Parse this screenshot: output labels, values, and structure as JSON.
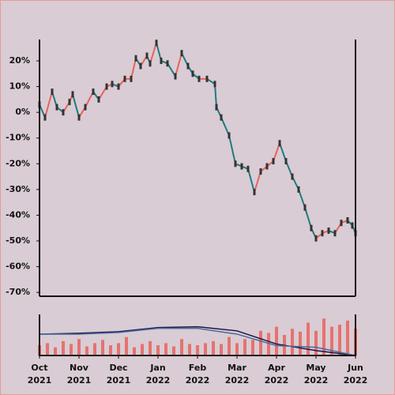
{
  "chart_data": [
    {
      "type": "line",
      "x": [
        0,
        0.14,
        0.32,
        0.44,
        0.6,
        0.76,
        0.84,
        1,
        1.16,
        1.36,
        1.5,
        1.7,
        1.84,
        2,
        2.16,
        2.32,
        2.44,
        2.56,
        2.72,
        2.8,
        2.96,
        3.08,
        3.24,
        3.44,
        3.6,
        3.76,
        3.88,
        4.04,
        4.24,
        4.44,
        4.48,
        4.6,
        4.8,
        4.96,
        5.12,
        5.28,
        5.44,
        5.6,
        5.76,
        5.92,
        6.08,
        6.24,
        6.4,
        6.56,
        6.72,
        6.88,
        7,
        7.16,
        7.32,
        7.48,
        7.64,
        7.8,
        7.92,
        8
      ],
      "values": [
        3,
        -2,
        8,
        2,
        0,
        4,
        7,
        -2,
        2,
        8,
        5,
        10,
        11,
        10,
        13,
        13,
        21,
        18,
        22,
        19,
        27,
        20,
        19,
        14,
        23,
        18,
        15,
        13,
        13,
        11,
        2,
        -2,
        -9,
        -20,
        -21,
        -22,
        -31,
        -23,
        -21,
        -19,
        -12,
        -19,
        -25,
        -30,
        -37,
        -45,
        -49,
        -47,
        -46,
        -47,
        -43,
        -42,
        -44,
        -47
      ],
      "up_color": "#e8625a",
      "down_color": "#1f7a80",
      "candle_color": "#333333",
      "xlim": [
        0,
        8
      ],
      "ylim": [
        -71.5,
        28.3
      ],
      "yticks": [
        {
          "value": -70,
          "label": "-70%"
        },
        {
          "value": -60,
          "label": "-60%"
        },
        {
          "value": -50,
          "label": "-50%"
        },
        {
          "value": -40,
          "label": "-40%"
        },
        {
          "value": -30,
          "label": "-30%"
        },
        {
          "value": -20,
          "label": "-20%"
        },
        {
          "value": -10,
          "label": "-10%"
        },
        {
          "value": 0,
          "label": "0%"
        },
        {
          "value": 10,
          "label": "10%"
        },
        {
          "value": 20,
          "label": "20%"
        }
      ]
    },
    {
      "type": "bar",
      "x": [
        0,
        0.2,
        0.4,
        0.6,
        0.8,
        1,
        1.2,
        1.4,
        1.6,
        1.8,
        2,
        2.2,
        2.4,
        2.6,
        2.8,
        3,
        3.2,
        3.4,
        3.6,
        3.8,
        4,
        4.2,
        4.4,
        4.6,
        4.8,
        5,
        5.2,
        5.4,
        5.6,
        5.8,
        6,
        6.2,
        6.4,
        6.6,
        6.8,
        7,
        7.2,
        7.4,
        7.6,
        7.8,
        8
      ],
      "values": [
        25,
        30,
        20,
        35,
        28,
        40,
        22,
        30,
        38,
        25,
        30,
        45,
        20,
        28,
        35,
        25,
        30,
        22,
        40,
        28,
        25,
        30,
        35,
        28,
        45,
        30,
        40,
        38,
        60,
        55,
        70,
        50,
        65,
        58,
        80,
        60,
        90,
        70,
        75,
        85,
        65
      ],
      "color": "#e8625a",
      "lines": [
        {
          "color": "#1a1446",
          "x": [
            0,
            1,
            2,
            3,
            4,
            5,
            6,
            7,
            8
          ],
          "values": [
            52,
            54,
            58,
            68,
            70,
            60,
            28,
            12,
            0
          ]
        },
        {
          "color": "#4a6a9a",
          "x": [
            0,
            1,
            2,
            3,
            4,
            5,
            6,
            7,
            8
          ],
          "values": [
            52,
            52,
            56,
            66,
            66,
            52,
            24,
            20,
            0
          ]
        }
      ],
      "xlim": [
        0,
        8
      ],
      "ylim": [
        0,
        100
      ],
      "xticks": [
        {
          "value": 0,
          "label": "Oct 2021"
        },
        {
          "value": 1,
          "label": "Nov 2021"
        },
        {
          "value": 2,
          "label": "Dec 2021"
        },
        {
          "value": 3,
          "label": "Jan 2022"
        },
        {
          "value": 4,
          "label": "Feb 2022"
        },
        {
          "value": 5,
          "label": "Mar 2022"
        },
        {
          "value": 6,
          "label": "Apr 2022"
        },
        {
          "value": 7,
          "label": "May 2022"
        },
        {
          "value": 8,
          "label": "Jun 2022"
        }
      ]
    }
  ]
}
